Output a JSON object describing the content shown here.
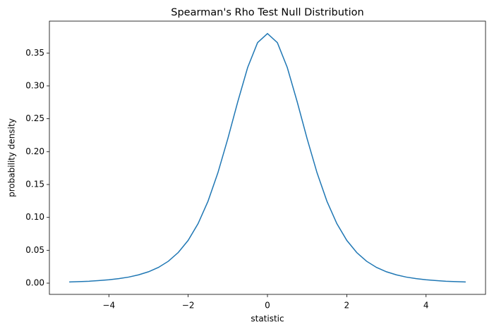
{
  "chart_data": {
    "type": "line",
    "title": "Spearman's Rho Test Null Distribution",
    "x_label": "statistic",
    "y_label": "probability density",
    "x": [
      -5,
      -4.75,
      -4.5,
      -4.25,
      -4,
      -3.75,
      -3.5,
      -3.25,
      -3,
      -2.75,
      -2.5,
      -2.25,
      -2,
      -1.75,
      -1.5,
      -1.25,
      -1,
      -0.75,
      -0.5,
      -0.25,
      0,
      0.25,
      0.5,
      0.75,
      1,
      1.25,
      1.5,
      1.75,
      2,
      2.25,
      2.5,
      2.75,
      3,
      3.25,
      3.5,
      3.75,
      4,
      4.25,
      4.5,
      4.75,
      5
    ],
    "series": [
      {
        "color": "#1f77b4",
        "values": [
          0.0018,
          0.0023,
          0.0029,
          0.0039,
          0.0051,
          0.0069,
          0.0092,
          0.0126,
          0.0173,
          0.0239,
          0.0333,
          0.0466,
          0.0651,
          0.0905,
          0.1245,
          0.1679,
          0.2197,
          0.2757,
          0.3279,
          0.3657,
          0.3796,
          0.3657,
          0.3279,
          0.2757,
          0.2197,
          0.1679,
          0.1245,
          0.0905,
          0.0651,
          0.0466,
          0.0333,
          0.0239,
          0.0173,
          0.0126,
          0.0092,
          0.0069,
          0.0051,
          0.0039,
          0.0029,
          0.0023,
          0.0018
        ]
      }
    ],
    "xlim": [
      -5.5,
      5.5
    ],
    "ylim": [
      -0.0171,
      0.3985
    ],
    "xticks": [
      {
        "value": -4,
        "label": "−4"
      },
      {
        "value": -2,
        "label": "−2"
      },
      0,
      2,
      4
    ],
    "yticks": [
      {
        "value": 0,
        "label": "0.00"
      },
      {
        "value": 0.05,
        "label": "0.05"
      },
      {
        "value": 0.1,
        "label": "0.10"
      },
      {
        "value": 0.15,
        "label": "0.15"
      },
      {
        "value": 0.2,
        "label": "0.20"
      },
      {
        "value": 0.25,
        "label": "0.25"
      },
      {
        "value": 0.3,
        "label": "0.30"
      },
      {
        "value": 0.35,
        "label": "0.35"
      }
    ],
    "grid": false
  }
}
